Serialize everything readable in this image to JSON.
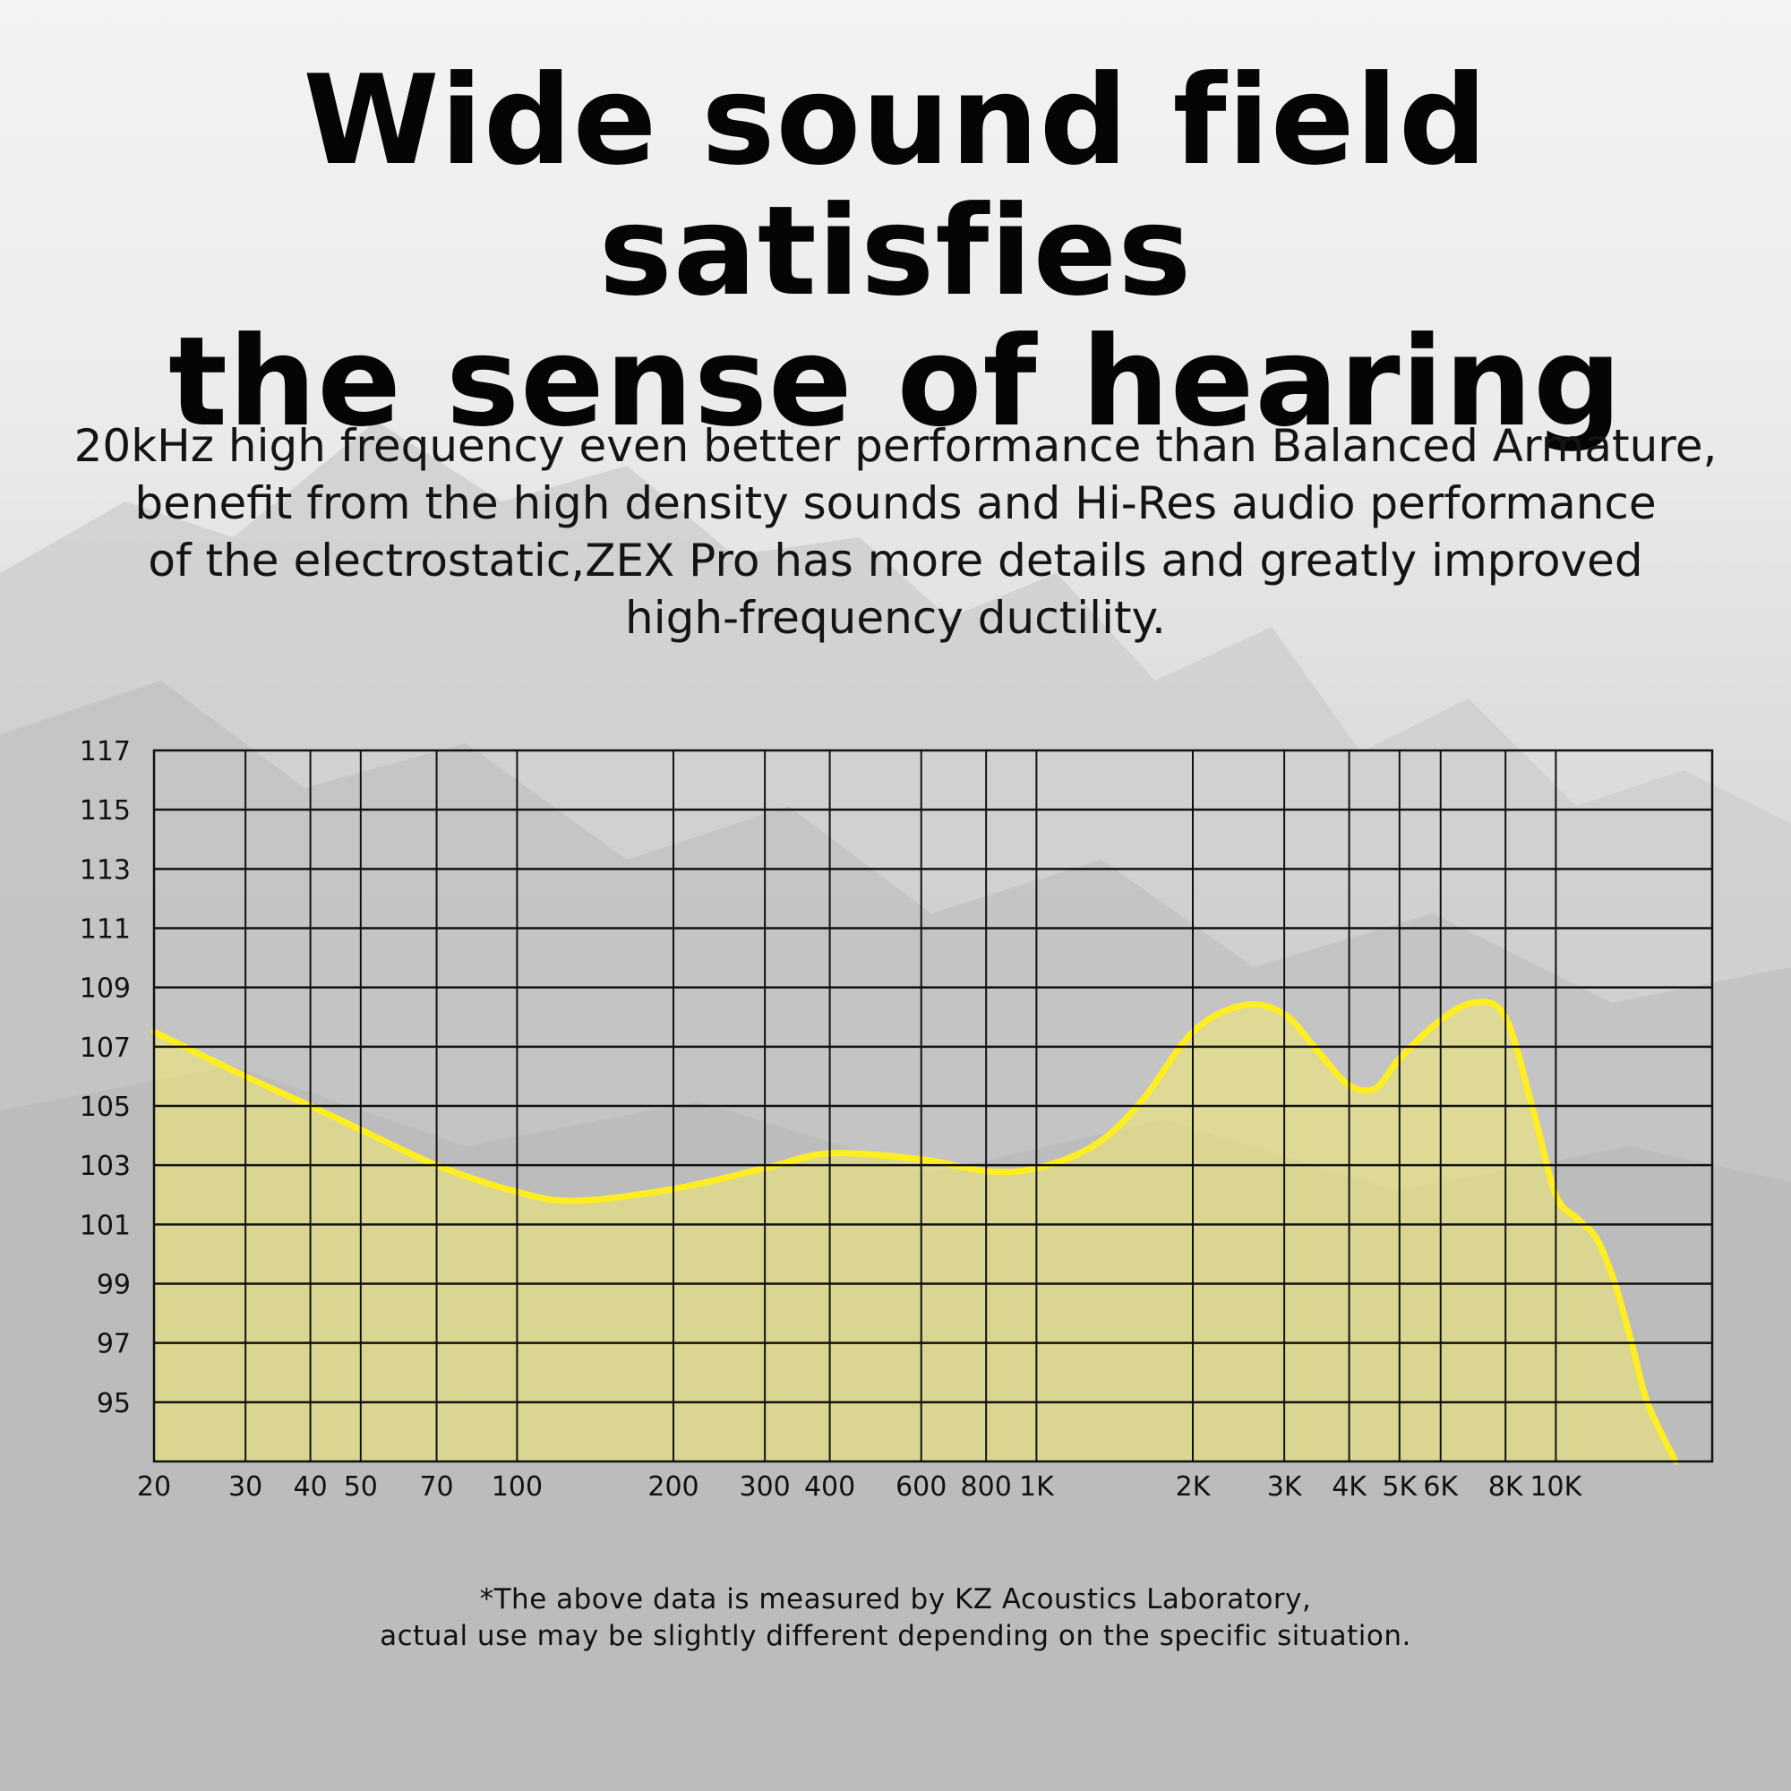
{
  "header": {
    "title_line1": "Wide sound field satisfies",
    "title_line2": "the sense of hearing"
  },
  "description": {
    "line1": "20kHz high frequency even better performance than Balanced Armature,",
    "line2": "benefit from the high density sounds and Hi-Res audio performance",
    "line3": "of the electrostatic,ZEX Pro has more details and greatly improved",
    "line4": "high-frequency ductility."
  },
  "chart_data": {
    "type": "area",
    "x_scale": "log",
    "xlim": [
      20,
      20000
    ],
    "ylim": [
      93,
      117
    ],
    "grid": true,
    "curve_color": "#ffee22",
    "fill_color": "#fff45c",
    "y_ticks": [
      117,
      115,
      113,
      111,
      109,
      107,
      105,
      103,
      101,
      99,
      97,
      95
    ],
    "x_ticks": [
      {
        "value": 20,
        "label": "20"
      },
      {
        "value": 30,
        "label": "30"
      },
      {
        "value": 40,
        "label": "40"
      },
      {
        "value": 50,
        "label": "50"
      },
      {
        "value": 70,
        "label": "70"
      },
      {
        "value": 100,
        "label": "100"
      },
      {
        "value": 200,
        "label": "200"
      },
      {
        "value": 300,
        "label": "300"
      },
      {
        "value": 400,
        "label": "400"
      },
      {
        "value": 600,
        "label": "600"
      },
      {
        "value": 800,
        "label": "800"
      },
      {
        "value": 1000,
        "label": "1K"
      },
      {
        "value": 2000,
        "label": "2K"
      },
      {
        "value": 3000,
        "label": "3K"
      },
      {
        "value": 4000,
        "label": "4K"
      },
      {
        "value": 5000,
        "label": "5K"
      },
      {
        "value": 6000,
        "label": "6K"
      },
      {
        "value": 8000,
        "label": "8K"
      },
      {
        "value": 10000,
        "label": "10K"
      }
    ],
    "series": [
      {
        "x": [
          20,
          30,
          40,
          50,
          70,
          100,
          130,
          200,
          300,
          400,
          600,
          800,
          1000,
          1300,
          1600,
          2000,
          2500,
          3000,
          3500,
          4000,
          4500,
          5000,
          6000,
          7000,
          8000,
          9000,
          10000,
          11000,
          12000,
          13000,
          14000,
          15000,
          17000
        ],
        "y": [
          107.5,
          106,
          105,
          104.2,
          103,
          102.1,
          101.8,
          102.2,
          102.9,
          103.4,
          103.2,
          102.8,
          102.9,
          103.7,
          105.2,
          107.5,
          108.4,
          108.1,
          106.8,
          105.7,
          105.6,
          106.6,
          107.9,
          108.5,
          108,
          105,
          102,
          101.2,
          100.5,
          99,
          97,
          95,
          93
        ]
      }
    ]
  },
  "footnote": {
    "line1": "*The above data is measured by KZ Acoustics Laboratory,",
    "line2": "actual use may be slightly different depending on the specific situation."
  }
}
